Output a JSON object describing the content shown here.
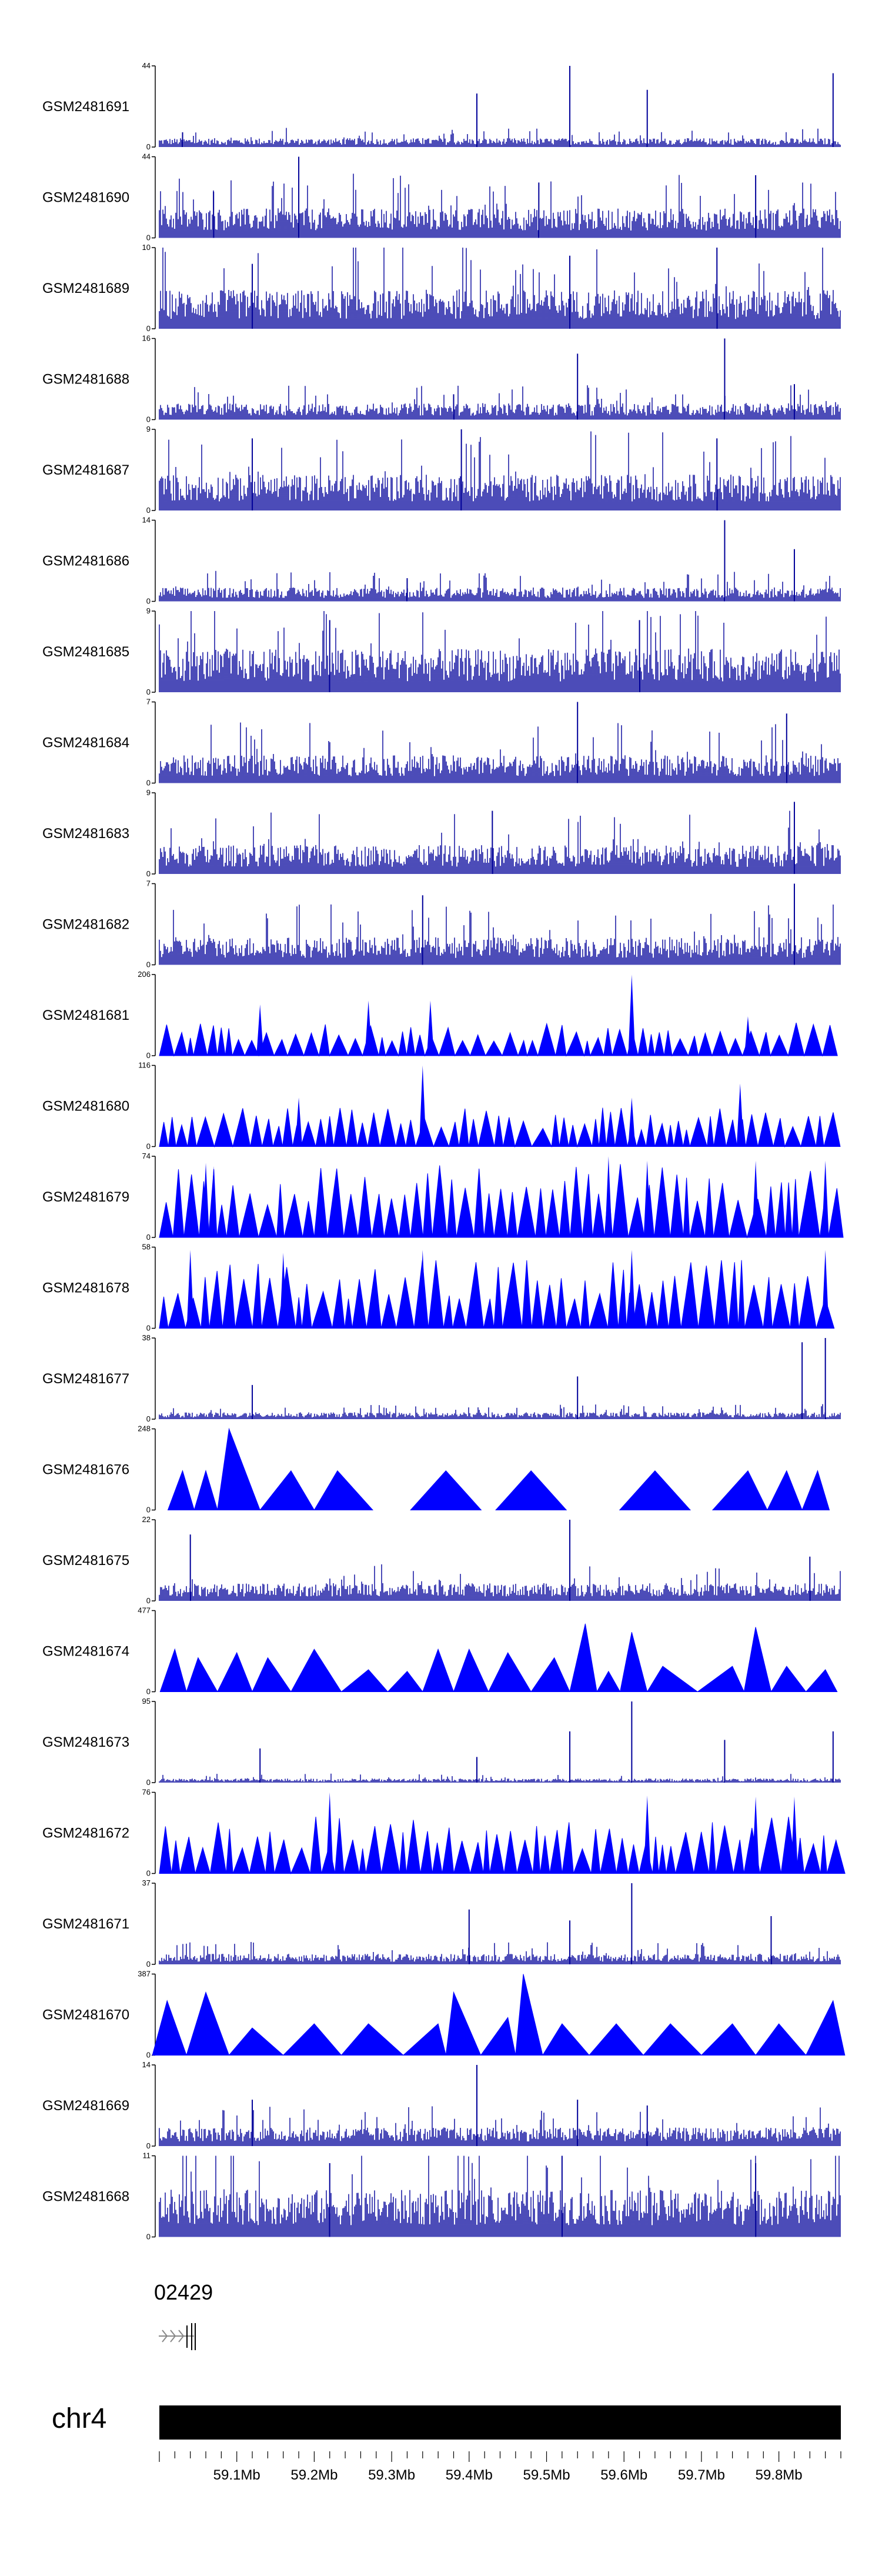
{
  "chart_data": {
    "type": "area",
    "region": {
      "chrom": "chr4",
      "start_mb": 59.0,
      "end_mb": 59.88
    },
    "tracks": [
      {
        "name": "GSM2481691",
        "ymin": 0,
        "ymax": 44,
        "style": "dense",
        "baseline": 3,
        "peaks": [
          [
            59.41,
            29
          ],
          [
            59.53,
            44
          ],
          [
            59.63,
            31
          ],
          [
            59.87,
            40
          ],
          [
            59.03,
            8
          ]
        ]
      },
      {
        "name": "GSM2481690",
        "ymin": 0,
        "ymax": 44,
        "style": "dense",
        "baseline": 10,
        "peaks": [
          [
            59.18,
            44
          ],
          [
            59.07,
            25
          ],
          [
            59.49,
            30
          ],
          [
            59.77,
            34
          ]
        ]
      },
      {
        "name": "GSM2481689",
        "ymin": 0,
        "ymax": 10,
        "style": "dense",
        "baseline": 3,
        "peaks": [
          [
            59.72,
            10
          ],
          [
            59.53,
            9
          ],
          [
            59.12,
            8
          ]
        ]
      },
      {
        "name": "GSM2481688",
        "ymin": 0,
        "ymax": 16,
        "style": "dense",
        "baseline": 2,
        "peaks": [
          [
            59.73,
            16
          ],
          [
            59.54,
            13
          ],
          [
            59.82,
            7
          ],
          [
            59.38,
            5
          ]
        ]
      },
      {
        "name": "GSM2481687",
        "ymin": 0,
        "ymax": 9,
        "style": "dense",
        "baseline": 2.5,
        "peaks": [
          [
            59.39,
            9
          ],
          [
            59.12,
            8
          ],
          [
            59.72,
            8
          ]
        ]
      },
      {
        "name": "GSM2481686",
        "ymin": 0,
        "ymax": 14,
        "style": "dense",
        "baseline": 1.5,
        "peaks": [
          [
            59.73,
            14
          ],
          [
            59.82,
            9
          ],
          [
            59.32,
            4
          ]
        ]
      },
      {
        "name": "GSM2481685",
        "ymin": 0,
        "ymax": 9,
        "style": "dense",
        "baseline": 3,
        "peaks": [
          [
            59.62,
            8
          ],
          [
            59.22,
            8
          ]
        ]
      },
      {
        "name": "GSM2481684",
        "ymin": 0,
        "ymax": 7,
        "style": "dense",
        "baseline": 1.5,
        "peaks": [
          [
            59.54,
            7
          ],
          [
            59.81,
            6
          ]
        ]
      },
      {
        "name": "GSM2481683",
        "ymin": 0,
        "ymax": 9,
        "style": "dense",
        "baseline": 2,
        "peaks": [
          [
            59.82,
            8
          ],
          [
            59.43,
            7
          ]
        ]
      },
      {
        "name": "GSM2481682",
        "ymin": 0,
        "ymax": 7,
        "style": "dense",
        "baseline": 1.5,
        "peaks": [
          [
            59.82,
            7
          ],
          [
            59.34,
            6
          ]
        ]
      },
      {
        "name": "GSM2481681",
        "ymin": 0,
        "ymax": 206,
        "style": "spiky",
        "baseline": 60,
        "peaks": [
          [
            59.13,
            130
          ],
          [
            59.27,
            140
          ],
          [
            59.35,
            140
          ],
          [
            59.61,
            206
          ],
          [
            59.76,
            100
          ]
        ]
      },
      {
        "name": "GSM2481680",
        "ymin": 0,
        "ymax": 116,
        "style": "spiky",
        "baseline": 40,
        "peaks": [
          [
            59.34,
            116
          ],
          [
            59.18,
            70
          ],
          [
            59.61,
            70
          ],
          [
            59.75,
            90
          ]
        ]
      },
      {
        "name": "GSM2481679",
        "ymin": 0,
        "ymax": 74,
        "style": "spiky",
        "baseline": 48,
        "peaks": [
          [
            59.06,
            68
          ],
          [
            59.07,
            65
          ],
          [
            59.58,
            74
          ],
          [
            59.63,
            70
          ],
          [
            59.77,
            70
          ],
          [
            59.86,
            70
          ]
        ]
      },
      {
        "name": "GSM2481678",
        "ymin": 0,
        "ymax": 58,
        "style": "spiky",
        "baseline": 35,
        "peaks": [
          [
            59.04,
            56
          ],
          [
            59.16,
            54
          ],
          [
            59.34,
            56
          ],
          [
            59.61,
            56
          ],
          [
            59.86,
            56
          ]
        ]
      },
      {
        "name": "GSM2481677",
        "ymin": 0,
        "ymax": 38,
        "style": "dense",
        "baseline": 2,
        "peaks": [
          [
            59.83,
            36
          ],
          [
            59.86,
            38
          ],
          [
            59.54,
            20
          ],
          [
            59.12,
            16
          ]
        ]
      },
      {
        "name": "GSM2481676",
        "ymin": 0,
        "ymax": 248,
        "style": "sparse",
        "baseline": 0,
        "peaks": [
          [
            59.03,
            120
          ],
          [
            59.06,
            120
          ],
          [
            59.09,
            248
          ],
          [
            59.17,
            120
          ],
          [
            59.23,
            120
          ],
          [
            59.37,
            120
          ],
          [
            59.48,
            120
          ],
          [
            59.64,
            120
          ],
          [
            59.76,
            120
          ],
          [
            59.81,
            120
          ],
          [
            59.85,
            120
          ]
        ]
      },
      {
        "name": "GSM2481675",
        "ymin": 0,
        "ymax": 22,
        "style": "dense",
        "baseline": 3,
        "peaks": [
          [
            59.53,
            22
          ],
          [
            59.04,
            18
          ],
          [
            59.84,
            12
          ]
        ]
      },
      {
        "name": "GSM2481674",
        "ymin": 0,
        "ymax": 477,
        "style": "sparse",
        "baseline": 0,
        "peaks": [
          [
            59.02,
            250
          ],
          [
            59.05,
            200
          ],
          [
            59.1,
            230
          ],
          [
            59.14,
            200
          ],
          [
            59.2,
            250
          ],
          [
            59.27,
            130
          ],
          [
            59.32,
            120
          ],
          [
            59.36,
            250
          ],
          [
            59.4,
            250
          ],
          [
            59.45,
            230
          ],
          [
            59.51,
            200
          ],
          [
            59.55,
            400
          ],
          [
            59.58,
            120
          ],
          [
            59.61,
            350
          ],
          [
            59.65,
            150
          ],
          [
            59.74,
            150
          ],
          [
            59.77,
            380
          ],
          [
            59.81,
            150
          ],
          [
            59.86,
            130
          ]
        ]
      },
      {
        "name": "GSM2481673",
        "ymin": 0,
        "ymax": 95,
        "style": "dense",
        "baseline": 3,
        "peaks": [
          [
            59.13,
            40
          ],
          [
            59.41,
            30
          ],
          [
            59.53,
            60
          ],
          [
            59.61,
            95
          ],
          [
            59.73,
            50
          ],
          [
            59.87,
            60
          ]
        ]
      },
      {
        "name": "GSM2481672",
        "ymin": 0,
        "ymax": 76,
        "style": "spiky",
        "baseline": 38,
        "peaks": [
          [
            59.22,
            76
          ],
          [
            59.63,
            73
          ],
          [
            59.77,
            72
          ],
          [
            59.82,
            72
          ]
        ]
      },
      {
        "name": "GSM2481671",
        "ymin": 0,
        "ymax": 37,
        "style": "dense",
        "baseline": 3,
        "peaks": [
          [
            59.61,
            37
          ],
          [
            59.4,
            25
          ],
          [
            59.53,
            20
          ],
          [
            59.79,
            22
          ]
        ]
      },
      {
        "name": "GSM2481670",
        "ymin": 0,
        "ymax": 387,
        "style": "sparse",
        "baseline": 0,
        "peaks": [
          [
            59.01,
            260
          ],
          [
            59.06,
            300
          ],
          [
            59.12,
            130
          ],
          [
            59.2,
            150
          ],
          [
            59.27,
            150
          ],
          [
            59.36,
            150
          ],
          [
            59.38,
            300
          ],
          [
            59.45,
            180
          ],
          [
            59.47,
            387
          ],
          [
            59.52,
            150
          ],
          [
            59.59,
            150
          ],
          [
            59.66,
            150
          ],
          [
            59.74,
            150
          ],
          [
            59.8,
            150
          ],
          [
            59.87,
            260
          ]
        ]
      },
      {
        "name": "GSM2481669",
        "ymin": 0,
        "ymax": 14,
        "style": "dense",
        "baseline": 2,
        "peaks": [
          [
            59.41,
            14
          ],
          [
            59.12,
            8
          ],
          [
            59.54,
            8
          ],
          [
            59.63,
            7
          ]
        ]
      },
      {
        "name": "GSM2481668",
        "ymin": 0,
        "ymax": 11,
        "style": "dense",
        "baseline": 4,
        "peaks": [
          [
            59.52,
            11
          ],
          [
            59.22,
            10
          ],
          [
            59.77,
            10
          ]
        ]
      }
    ],
    "gene_label": "02429",
    "chromosome": {
      "name": "chr4",
      "ticks": [
        "59.1Mb",
        "59.2Mb",
        "59.3Mb",
        "59.4Mb",
        "59.5Mb",
        "59.6Mb",
        "59.7Mb",
        "59.8Mb"
      ]
    }
  },
  "colors": {
    "track": "#0000ff",
    "dense": "#000099",
    "text": "#000000"
  }
}
